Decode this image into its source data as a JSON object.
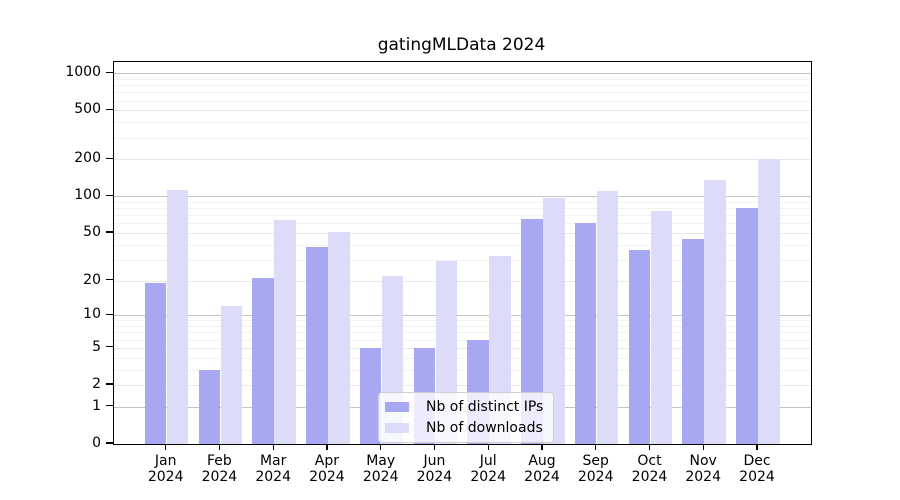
{
  "chart_data": {
    "type": "bar",
    "title": "gatingMLData 2024",
    "categories": [
      "Jan",
      "Feb",
      "Mar",
      "Apr",
      "May",
      "Jun",
      "Jul",
      "Aug",
      "Sep",
      "Oct",
      "Nov",
      "Dec"
    ],
    "category_year": "2024",
    "series": [
      {
        "name": "Nb of distinct IPs",
        "color": "#a7a7f2",
        "values": [
          19,
          3,
          21,
          38,
          5,
          5,
          6,
          65,
          61,
          36,
          45,
          80
        ]
      },
      {
        "name": "Nb of downloads",
        "color": "#dcdcf9",
        "values": [
          113,
          12,
          64,
          51,
          22,
          29,
          32,
          97,
          111,
          76,
          137,
          201
        ]
      }
    ],
    "xlabel": "",
    "ylabel": "",
    "yticks": [
      0,
      1,
      2,
      5,
      10,
      20,
      50,
      100,
      200,
      500,
      1000
    ],
    "ylim": [
      0,
      1232
    ],
    "scale": "log1p",
    "grid": true,
    "legend_position": "bottom-center"
  }
}
